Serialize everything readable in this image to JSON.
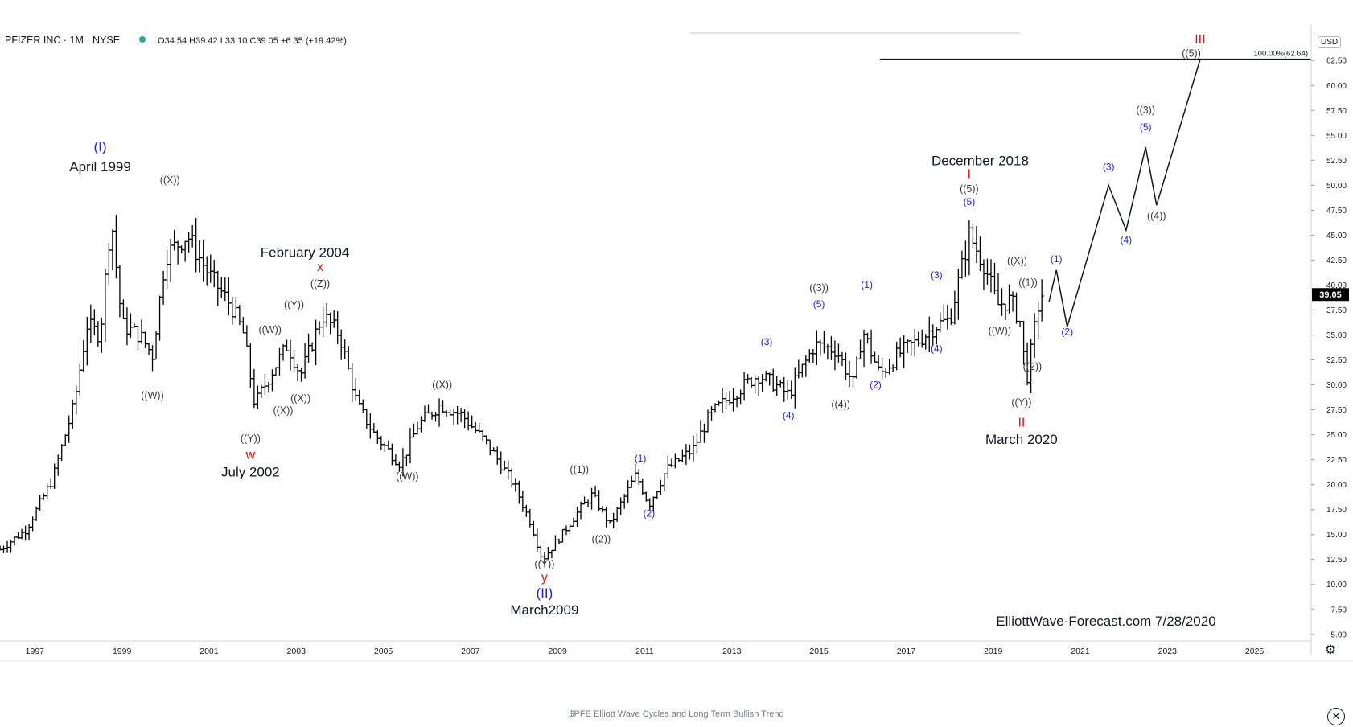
{
  "header": {
    "symbol": "PFIZER INC · 1M · NYSE",
    "ohlc": "O34.54  H39.42  L33.10  C39.05  +6.35 (+19.42%)"
  },
  "currency": "USD",
  "caption": "$PFE Elliott Wave Cycles and Long Term Bullish Trend",
  "watermark": "ElliottWave-Forecast.com 7/28/2020",
  "colors": {
    "background": "#ffffff",
    "bars": "#000000",
    "minor_label": "#3a3a3a",
    "blue_label": "#1f1fd6",
    "red_label": "#e01010",
    "last_price_bg": "#000000",
    "axis": "#787b86"
  },
  "icons": {
    "settings": "gear-icon",
    "close": "close-icon"
  },
  "chart_data": {
    "type": "ohlc",
    "title": "PFIZER INC · 1M · NYSE",
    "x_axis": {
      "type": "time",
      "range": [
        1996.7,
        2026.8
      ],
      "ticks": [
        "1997",
        "1999",
        "2001",
        "2003",
        "2005",
        "2007",
        "2009",
        "2011",
        "2013",
        "2015",
        "2017",
        "2019",
        "2021",
        "2023",
        "2025"
      ]
    },
    "y_axis": {
      "position": "right",
      "range": [
        4.5,
        65.5
      ],
      "ticks": [
        "5.00",
        "7.50",
        "10.00",
        "12.50",
        "15.00",
        "17.50",
        "20.00",
        "22.50",
        "25.00",
        "27.50",
        "30.00",
        "32.50",
        "35.00",
        "37.50",
        "40.00",
        "42.50",
        "45.00",
        "47.50",
        "50.00",
        "52.50",
        "55.00",
        "57.50",
        "60.00",
        "62.50"
      ]
    },
    "last_price": {
      "value": 39.05,
      "label": "39.05"
    },
    "price_anchors": [
      [
        1996.7,
        13.5
      ],
      [
        1997.3,
        15.5
      ],
      [
        1997.9,
        20.5
      ],
      [
        1998.4,
        28
      ],
      [
        1998.7,
        36
      ],
      [
        1999.0,
        35
      ],
      [
        1999.25,
        47
      ],
      [
        1999.5,
        36
      ],
      [
        1999.9,
        35
      ],
      [
        2000.2,
        33
      ],
      [
        2000.5,
        43
      ],
      [
        2001.0,
        45
      ],
      [
        2001.5,
        41
      ],
      [
        2002.0,
        38
      ],
      [
        2002.3,
        35
      ],
      [
        2002.55,
        28
      ],
      [
        2002.9,
        31
      ],
      [
        2003.3,
        34
      ],
      [
        2003.6,
        31
      ],
      [
        2004.1,
        37
      ],
      [
        2004.5,
        35
      ],
      [
        2004.9,
        28
      ],
      [
        2005.3,
        25
      ],
      [
        2005.9,
        22
      ],
      [
        2006.3,
        26
      ],
      [
        2006.8,
        28
      ],
      [
        2007.3,
        27
      ],
      [
        2007.9,
        24
      ],
      [
        2008.5,
        20
      ],
      [
        2008.9,
        16
      ],
      [
        2009.15,
        12.5
      ],
      [
        2009.6,
        15
      ],
      [
        2010.0,
        17.5
      ],
      [
        2010.3,
        19
      ],
      [
        2010.7,
        16
      ],
      [
        2011.0,
        18.5
      ],
      [
        2011.3,
        21
      ],
      [
        2011.6,
        18
      ],
      [
        2012.0,
        21.5
      ],
      [
        2012.6,
        23.5
      ],
      [
        2013.0,
        27
      ],
      [
        2013.5,
        29
      ],
      [
        2014.1,
        31
      ],
      [
        2014.5,
        30
      ],
      [
        2014.8,
        29
      ],
      [
        2015.4,
        34
      ],
      [
        2015.9,
        33.5
      ],
      [
        2016.3,
        30
      ],
      [
        2016.5,
        35.5
      ],
      [
        2016.9,
        31
      ],
      [
        2017.3,
        33
      ],
      [
        2017.8,
        34.5
      ],
      [
        2018.2,
        36
      ],
      [
        2018.5,
        36.5
      ],
      [
        2018.95,
        45
      ],
      [
        2019.3,
        42
      ],
      [
        2019.6,
        38
      ],
      [
        2019.9,
        38.5
      ],
      [
        2020.15,
        36
      ],
      [
        2020.25,
        30
      ],
      [
        2020.5,
        37
      ],
      [
        2020.58,
        39.05
      ]
    ],
    "projection": {
      "path": [
        [
          2020.78,
          38.3
        ],
        [
          2020.95,
          41.5
        ],
        [
          2021.2,
          35.8
        ],
        [
          2022.15,
          50
        ],
        [
          2022.55,
          45.5
        ],
        [
          2023.0,
          53.8
        ],
        [
          2023.25,
          48
        ],
        [
          2024.25,
          62.6
        ]
      ],
      "target_line": {
        "value": 62.64,
        "x_start": 2016.9,
        "label": "100.00%(62.64)"
      }
    },
    "annotations": [
      {
        "x": 1999.0,
        "y": 53.4,
        "text": "(I)",
        "style": "blue-large"
      },
      {
        "x": 1999.0,
        "y": 51.4,
        "text": "April 1999",
        "style": "date"
      },
      {
        "x": 2000.6,
        "y": 50.2,
        "text": "((X))",
        "style": "minor"
      },
      {
        "x": 2000.2,
        "y": 28.6,
        "text": "((W))",
        "style": "minor"
      },
      {
        "x": 2002.45,
        "y": 24.3,
        "text": "((Y))",
        "style": "minor"
      },
      {
        "x": 2002.45,
        "y": 22.6,
        "text": "w",
        "style": "red"
      },
      {
        "x": 2002.45,
        "y": 20.8,
        "text": "July 2002",
        "style": "date"
      },
      {
        "x": 2003.7,
        "y": 42.8,
        "text": "February 2004",
        "style": "date"
      },
      {
        "x": 2004.05,
        "y": 41.4,
        "text": "x",
        "style": "red"
      },
      {
        "x": 2004.05,
        "y": 39.8,
        "text": "((Z))",
        "style": "minor"
      },
      {
        "x": 2003.45,
        "y": 37.7,
        "text": "((Y))",
        "style": "minor"
      },
      {
        "x": 2002.9,
        "y": 35.2,
        "text": "((W))",
        "style": "minor"
      },
      {
        "x": 2003.6,
        "y": 28.3,
        "text": "((X))",
        "style": "minor"
      },
      {
        "x": 2003.2,
        "y": 27.1,
        "text": "((X))",
        "style": "minor"
      },
      {
        "x": 2006.85,
        "y": 29.7,
        "text": "((X))",
        "style": "minor"
      },
      {
        "x": 2006.05,
        "y": 20.5,
        "text": "((W))",
        "style": "minor"
      },
      {
        "x": 2010.0,
        "y": 21.2,
        "text": "((1))",
        "style": "minor"
      },
      {
        "x": 2010.5,
        "y": 14.2,
        "text": "((2))",
        "style": "minor"
      },
      {
        "x": 2009.2,
        "y": 11.7,
        "text": "((Y))",
        "style": "minor"
      },
      {
        "x": 2009.2,
        "y": 10.3,
        "text": "y",
        "style": "red"
      },
      {
        "x": 2009.2,
        "y": 8.7,
        "text": "(II)",
        "style": "blue-large"
      },
      {
        "x": 2009.2,
        "y": 7.0,
        "text": "March2009",
        "style": "date"
      },
      {
        "x": 2011.4,
        "y": 22.3,
        "text": "(1)",
        "style": "blue"
      },
      {
        "x": 2011.6,
        "y": 16.8,
        "text": "(2)",
        "style": "blue"
      },
      {
        "x": 2014.3,
        "y": 34.0,
        "text": "(3)",
        "style": "blue"
      },
      {
        "x": 2014.8,
        "y": 26.6,
        "text": "(4)",
        "style": "blue"
      },
      {
        "x": 2015.5,
        "y": 39.4,
        "text": "((3))",
        "style": "minor"
      },
      {
        "x": 2015.5,
        "y": 37.8,
        "text": "(5)",
        "style": "blue"
      },
      {
        "x": 2016.0,
        "y": 27.7,
        "text": "((4))",
        "style": "minor"
      },
      {
        "x": 2016.6,
        "y": 39.7,
        "text": "(1)",
        "style": "blue"
      },
      {
        "x": 2016.8,
        "y": 29.7,
        "text": "(2)",
        "style": "blue"
      },
      {
        "x": 2018.2,
        "y": 40.7,
        "text": "(3)",
        "style": "blue"
      },
      {
        "x": 2018.2,
        "y": 33.3,
        "text": "(4)",
        "style": "blue"
      },
      {
        "x": 2019.2,
        "y": 52.0,
        "text": "December 2018",
        "style": "date"
      },
      {
        "x": 2018.95,
        "y": 50.7,
        "text": "I",
        "style": "red"
      },
      {
        "x": 2018.95,
        "y": 49.3,
        "text": "((5))",
        "style": "minor"
      },
      {
        "x": 2018.95,
        "y": 48.0,
        "text": "(5)",
        "style": "blue"
      },
      {
        "x": 2020.05,
        "y": 42.1,
        "text": "((X))",
        "style": "minor"
      },
      {
        "x": 2019.65,
        "y": 35.1,
        "text": "((W))",
        "style": "minor"
      },
      {
        "x": 2020.3,
        "y": 39.9,
        "text": "((1))",
        "style": "minor"
      },
      {
        "x": 2020.4,
        "y": 31.5,
        "text": "((2))",
        "style": "minor"
      },
      {
        "x": 2020.15,
        "y": 27.9,
        "text": "((Y))",
        "style": "minor"
      },
      {
        "x": 2020.15,
        "y": 25.8,
        "text": "II",
        "style": "red"
      },
      {
        "x": 2020.15,
        "y": 24.1,
        "text": "March 2020",
        "style": "date"
      },
      {
        "x": 2020.95,
        "y": 42.3,
        "text": "(1)",
        "style": "blue"
      },
      {
        "x": 2021.2,
        "y": 35.0,
        "text": "(2)",
        "style": "blue"
      },
      {
        "x": 2022.15,
        "y": 51.5,
        "text": "(3)",
        "style": "blue"
      },
      {
        "x": 2022.55,
        "y": 44.2,
        "text": "(4)",
        "style": "blue"
      },
      {
        "x": 2023.0,
        "y": 57.2,
        "text": "((3))",
        "style": "minor"
      },
      {
        "x": 2023.0,
        "y": 55.5,
        "text": "(5)",
        "style": "blue"
      },
      {
        "x": 2023.25,
        "y": 46.6,
        "text": "((4))",
        "style": "minor"
      },
      {
        "x": 2024.25,
        "y": 64.2,
        "text": "III",
        "style": "red"
      },
      {
        "x": 2024.05,
        "y": 62.9,
        "text": "((5))",
        "style": "minor"
      }
    ]
  }
}
